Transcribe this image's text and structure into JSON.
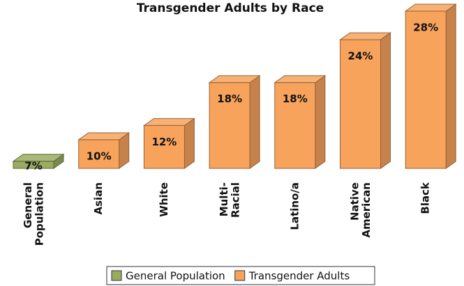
{
  "chart_data": {
    "type": "bar3d",
    "title": "Transgender Adults by Race",
    "categories": [
      "General\nPopulation",
      "Asian",
      "White",
      "Multi-\nRacial",
      "Latino/a",
      "Native\nAmerican",
      "Black"
    ],
    "series": [
      {
        "name": "General Population",
        "color": "#9bab60",
        "values": [
          7,
          null,
          null,
          null,
          null,
          null,
          null
        ],
        "value_labels": [
          "7%",
          null,
          null,
          null,
          null,
          null,
          null
        ]
      },
      {
        "name": "Transgender Adults",
        "color": "#f7a35c",
        "values": [
          null,
          10,
          12,
          18,
          18,
          24,
          28
        ],
        "value_labels": [
          null,
          "10%",
          "12%",
          "18%",
          "18%",
          "24%",
          "28%"
        ]
      }
    ],
    "ylim": [
      6,
      30
    ],
    "legend": "bottom"
  }
}
